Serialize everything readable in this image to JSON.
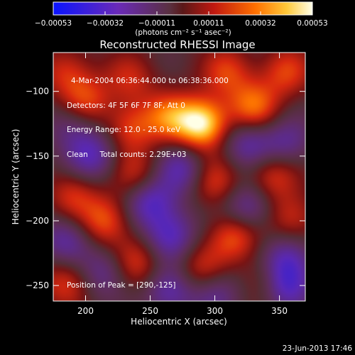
{
  "chart_data": {
    "type": "heatmap",
    "title": "Reconstructed RHESSI Image",
    "xlabel": "Heliocentric X (arcsec)",
    "ylabel": "Heliocentric Y (arcsec)",
    "xlim": [
      175,
      370
    ],
    "ylim": [
      -262,
      -70
    ],
    "xticks": [
      200,
      250,
      300,
      350
    ],
    "yticks": [
      -100,
      -150,
      -200,
      -250
    ],
    "colorbar": {
      "ticks": [
        "-0.00053",
        "-0.00032",
        "-0.00011",
        "0.00011",
        "0.00032",
        "0.00053"
      ],
      "range": [
        -0.00053,
        0.00053
      ],
      "unit_label": "(photons cm⁻² s⁻¹ asec⁻²)",
      "colors": [
        "#0a14ff",
        "#5a28c8",
        "#6a2a6a",
        "#5a3a3a",
        "#7a1010",
        "#e03010",
        "#ff8000",
        "#ffd040",
        "#ffffe0"
      ]
    },
    "peak": {
      "x": 290,
      "y": -125
    },
    "total_counts": "2.29E+03",
    "energy_range_kev": [
      12.0,
      25.0
    ],
    "sources": [
      {
        "x": 290,
        "y": -125,
        "amp": 1.0
      },
      {
        "x": 265,
        "y": -120,
        "amp": 0.55
      },
      {
        "x": 235,
        "y": -128,
        "amp": 0.45
      },
      {
        "x": 330,
        "y": -112,
        "amp": 0.6
      },
      {
        "x": 355,
        "y": -85,
        "amp": 0.45
      },
      {
        "x": 310,
        "y": -85,
        "amp": 0.45
      },
      {
        "x": 200,
        "y": -108,
        "amp": 0.5
      },
      {
        "x": 185,
        "y": -85,
        "amp": 0.4
      },
      {
        "x": 235,
        "y": -90,
        "amp": 0.35
      },
      {
        "x": 240,
        "y": -165,
        "amp": 0.4
      },
      {
        "x": 300,
        "y": -170,
        "amp": 0.45
      },
      {
        "x": 345,
        "y": -165,
        "amp": 0.45
      },
      {
        "x": 190,
        "y": -180,
        "amp": 0.4
      },
      {
        "x": 215,
        "y": -200,
        "amp": 0.55
      },
      {
        "x": 315,
        "y": -212,
        "amp": 0.55
      },
      {
        "x": 360,
        "y": -198,
        "amp": 0.4
      },
      {
        "x": 240,
        "y": -232,
        "amp": 0.45
      },
      {
        "x": 290,
        "y": -238,
        "amp": 0.4
      },
      {
        "x": 185,
        "y": -248,
        "amp": 0.45
      },
      {
        "x": 340,
        "y": -245,
        "amp": 0.35
      },
      {
        "x": 205,
        "y": -150,
        "amp": -0.5
      },
      {
        "x": 250,
        "y": -185,
        "amp": -0.6
      },
      {
        "x": 275,
        "y": -160,
        "amp": -0.5
      },
      {
        "x": 325,
        "y": -190,
        "amp": -0.5
      },
      {
        "x": 355,
        "y": -230,
        "amp": -0.5
      },
      {
        "x": 355,
        "y": -250,
        "amp": -0.6
      },
      {
        "x": 265,
        "y": -212,
        "amp": -0.55
      },
      {
        "x": 185,
        "y": -215,
        "amp": -0.45
      },
      {
        "x": 325,
        "y": -140,
        "amp": -0.45
      },
      {
        "x": 265,
        "y": -255,
        "amp": -0.45
      },
      {
        "x": 190,
        "y": -125,
        "amp": -0.35
      },
      {
        "x": 355,
        "y": -140,
        "amp": -0.4
      },
      {
        "x": 215,
        "y": -240,
        "amp": -0.4
      },
      {
        "x": 300,
        "y": -255,
        "amp": -0.4
      }
    ]
  },
  "legend": {
    "line1": "4-Mar-2004 06:36:44.000 to 06:38:36.000",
    "line2": "Detectors: 4F 5F 6F 7F 8F, Att 0",
    "line3": "Energy Range: 12.0 - 25.0 keV",
    "line4": "Clean     Total counts: 2.29E+03"
  },
  "peak_label": "Position of Peak = [290,-125]",
  "timestamp": "23-Jun-2013 17:46"
}
